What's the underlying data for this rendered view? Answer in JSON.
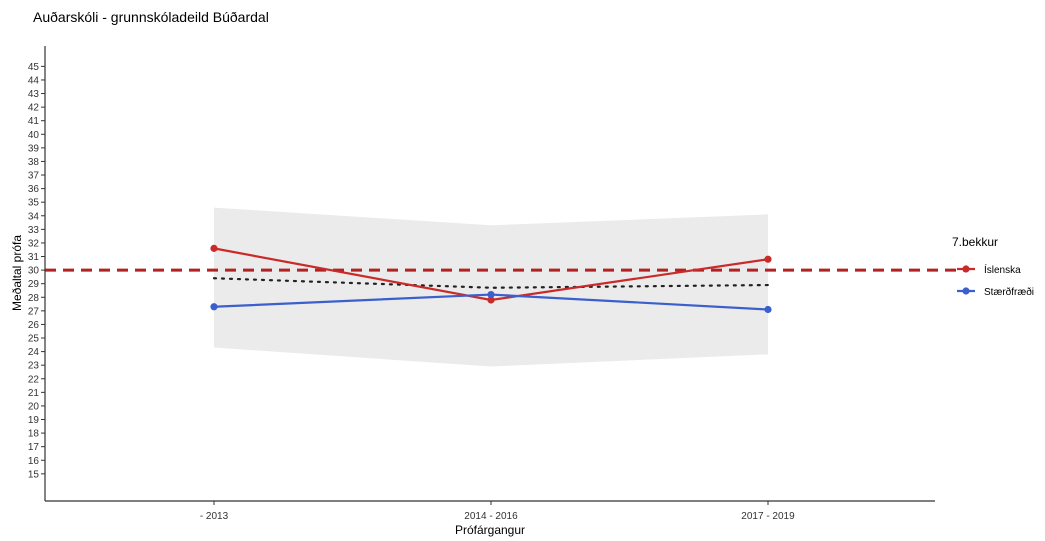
{
  "chart_data": {
    "type": "line",
    "title": "Auðarskóli - grunnskóladeild Búðardal",
    "xlabel": "Prófárgangur",
    "ylabel": "Meðaltal prófa",
    "categories": [
      "- 2013",
      "2014 - 2016",
      "2017 - 2019"
    ],
    "ylim": [
      13,
      46.5
    ],
    "yticks": [
      15,
      16,
      17,
      18,
      19,
      20,
      21,
      22,
      23,
      24,
      25,
      26,
      27,
      28,
      29,
      30,
      31,
      32,
      33,
      34,
      35,
      36,
      37,
      38,
      39,
      40,
      41,
      42,
      43,
      44,
      45
    ],
    "grid": false,
    "legend": {
      "title": "7.bekkur",
      "position": "right"
    },
    "series": [
      {
        "name": "Íslenska",
        "color": "#c92a2a",
        "values": [
          31.6,
          27.8,
          30.8
        ]
      },
      {
        "name": "Stærðfræði",
        "color": "#3b5fcc",
        "values": [
          27.3,
          28.2,
          27.1
        ]
      }
    ],
    "reference_line": {
      "value": 30,
      "color": "#b22222",
      "style": "dashed"
    },
    "trend_line": {
      "values": [
        29.4,
        28.7,
        28.9
      ],
      "color": "#222222",
      "style": "dotted"
    },
    "confidence_band": {
      "lower": [
        24.3,
        22.9,
        23.8
      ],
      "upper": [
        34.6,
        33.3,
        34.1
      ],
      "color": "#ebebeb"
    }
  }
}
